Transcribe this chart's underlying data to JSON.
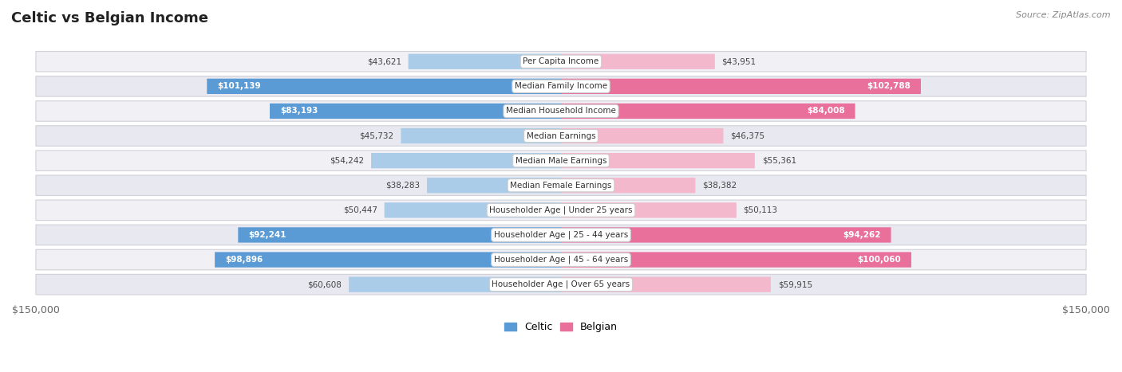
{
  "title": "Celtic vs Belgian Income",
  "source": "Source: ZipAtlas.com",
  "categories": [
    "Per Capita Income",
    "Median Family Income",
    "Median Household Income",
    "Median Earnings",
    "Median Male Earnings",
    "Median Female Earnings",
    "Householder Age | Under 25 years",
    "Householder Age | 25 - 44 years",
    "Householder Age | 45 - 64 years",
    "Householder Age | Over 65 years"
  ],
  "celtic_values": [
    43621,
    101139,
    83193,
    45732,
    54242,
    38283,
    50447,
    92241,
    98896,
    60608
  ],
  "belgian_values": [
    43951,
    102788,
    84008,
    46375,
    55361,
    38382,
    50113,
    94262,
    100060,
    59915
  ],
  "celtic_labels": [
    "$43,621",
    "$101,139",
    "$83,193",
    "$45,732",
    "$54,242",
    "$38,283",
    "$50,447",
    "$92,241",
    "$98,896",
    "$60,608"
  ],
  "belgian_labels": [
    "$43,951",
    "$102,788",
    "$84,008",
    "$46,375",
    "$55,361",
    "$38,382",
    "$50,113",
    "$94,262",
    "$100,060",
    "$59,915"
  ],
  "celtic_color_light": "#aacce8",
  "celtic_color_dark": "#5b9bd5",
  "belgian_color_light": "#f4b8cd",
  "belgian_color_dark": "#e8709a",
  "row_bg_light": "#f0f0f5",
  "row_bg_dark": "#e8e8f0",
  "max_value": 150000,
  "large_threshold": 70000,
  "legend_celtic": "Celtic",
  "legend_belgian": "Belgian",
  "bg_color": "#ffffff",
  "title_color": "#222222",
  "source_color": "#888888",
  "label_dark_color": "#444444",
  "label_white_color": "#ffffff"
}
